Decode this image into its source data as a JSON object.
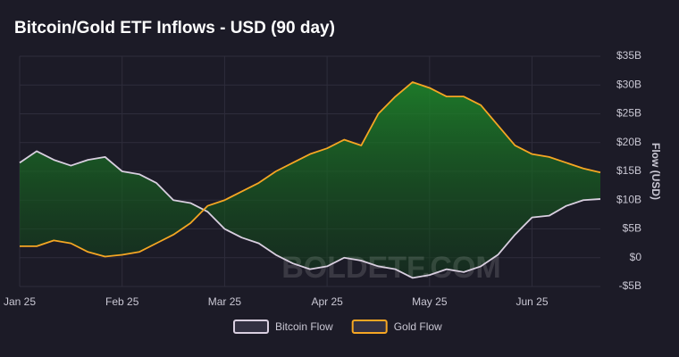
{
  "chart_data": {
    "type": "line",
    "title": "Bitcoin/Gold ETF Inflows - USD (90 day)",
    "y_label": "Flow (USD)",
    "watermark": "BOLDETF.COM",
    "categories": [
      "Jan 25",
      null,
      null,
      null,
      null,
      null,
      "Feb 25",
      null,
      null,
      null,
      null,
      null,
      "Mar 25",
      null,
      null,
      null,
      null,
      null,
      "Apr 25",
      null,
      null,
      null,
      null,
      null,
      "May 25",
      null,
      null,
      null,
      null,
      null,
      "Jun 25",
      null,
      null,
      null,
      null
    ],
    "series": [
      {
        "name": "Bitcoin Flow",
        "color": "#d9cfe0",
        "values": [
          16.5,
          18.5,
          17,
          16,
          17,
          17.5,
          15,
          14.5,
          13,
          10,
          9.5,
          8,
          5,
          3.5,
          2.5,
          0.5,
          -1,
          -2,
          -1.5,
          0,
          -0.5,
          -1.5,
          -2,
          -3.5,
          -3,
          -2,
          -2.5,
          -1.5,
          0.5,
          4,
          7,
          7.3,
          9,
          10,
          10.2
        ]
      },
      {
        "name": "Gold Flow",
        "color": "#f5a623",
        "values": [
          2,
          2,
          3,
          2.5,
          1,
          0.2,
          0.5,
          1,
          2.5,
          4,
          6,
          9,
          10,
          11.5,
          13,
          15,
          16.5,
          18,
          19,
          20.5,
          19.5,
          25,
          28,
          30.5,
          29.5,
          28,
          28,
          26.5,
          23,
          19.5,
          18,
          17.5,
          16.5,
          15.5,
          14.8
        ]
      }
    ],
    "ylim": [
      -5,
      35
    ],
    "yticks": [
      {
        "value": -5,
        "label": "-$5B"
      },
      {
        "value": 0,
        "label": "$0"
      },
      {
        "value": 5,
        "label": "$5B"
      },
      {
        "value": 10,
        "label": "$10B"
      },
      {
        "value": 15,
        "label": "$15B"
      },
      {
        "value": 20,
        "label": "$20B"
      },
      {
        "value": 25,
        "label": "$25B"
      },
      {
        "value": 30,
        "label": "$30B"
      },
      {
        "value": 35,
        "label": "$35B"
      }
    ],
    "grid": true
  }
}
